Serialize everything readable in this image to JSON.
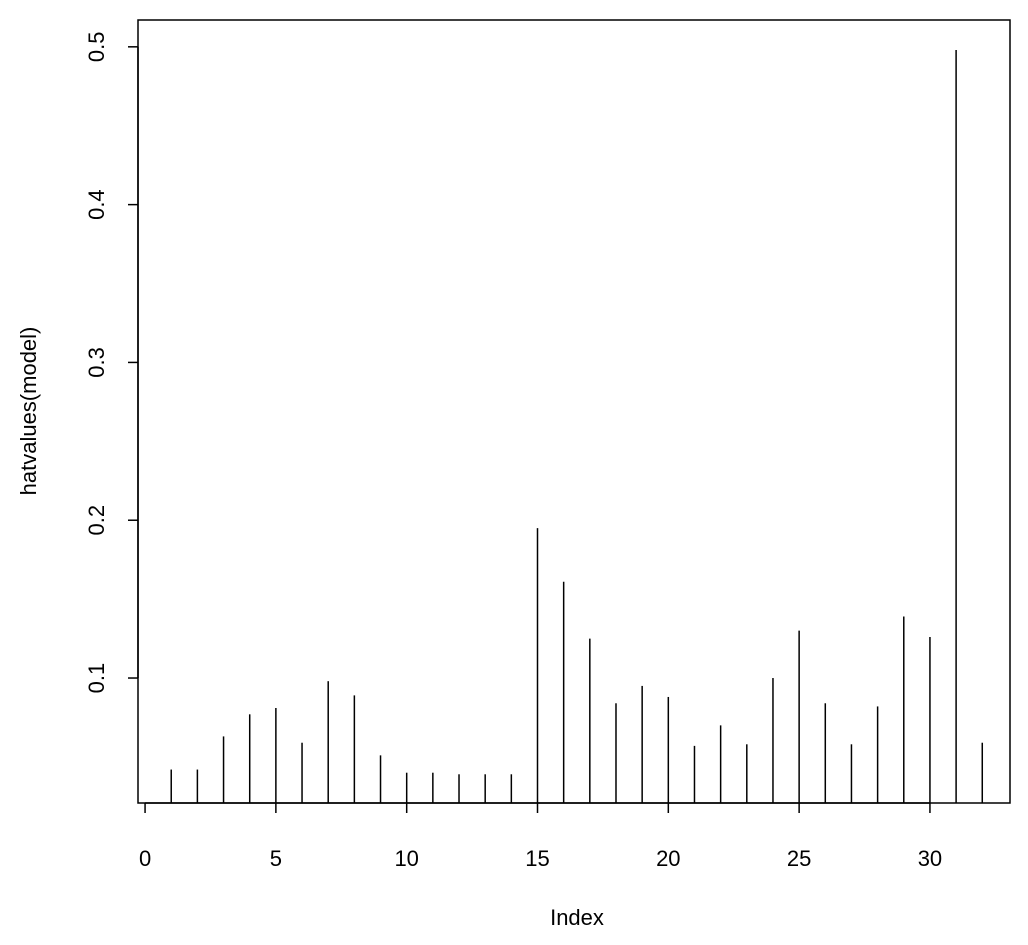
{
  "chart_data": {
    "type": "needle",
    "x_label": "Index",
    "y_label": "hatvalues(model)",
    "x": [
      1,
      2,
      3,
      4,
      5,
      6,
      7,
      8,
      9,
      10,
      11,
      12,
      13,
      14,
      15,
      16,
      17,
      18,
      19,
      20,
      21,
      22,
      23,
      24,
      25,
      26,
      27,
      28,
      29,
      30,
      31,
      32
    ],
    "values": [
      0.042,
      0.042,
      0.063,
      0.077,
      0.081,
      0.059,
      0.098,
      0.089,
      0.051,
      0.04,
      0.04,
      0.039,
      0.039,
      0.039,
      0.195,
      0.161,
      0.125,
      0.084,
      0.095,
      0.088,
      0.057,
      0.07,
      0.058,
      0.1,
      0.13,
      0.084,
      0.058,
      0.082,
      0.139,
      0.126,
      0.498,
      0.059
    ],
    "color": "#000000",
    "xlim": [
      -0.27,
      33.06
    ],
    "ylim": [
      0.0208,
      0.517
    ],
    "xticks": [
      0,
      5,
      10,
      15,
      20,
      25,
      30
    ],
    "yticks": [
      0.1,
      0.2,
      0.3,
      0.4,
      0.5
    ]
  }
}
